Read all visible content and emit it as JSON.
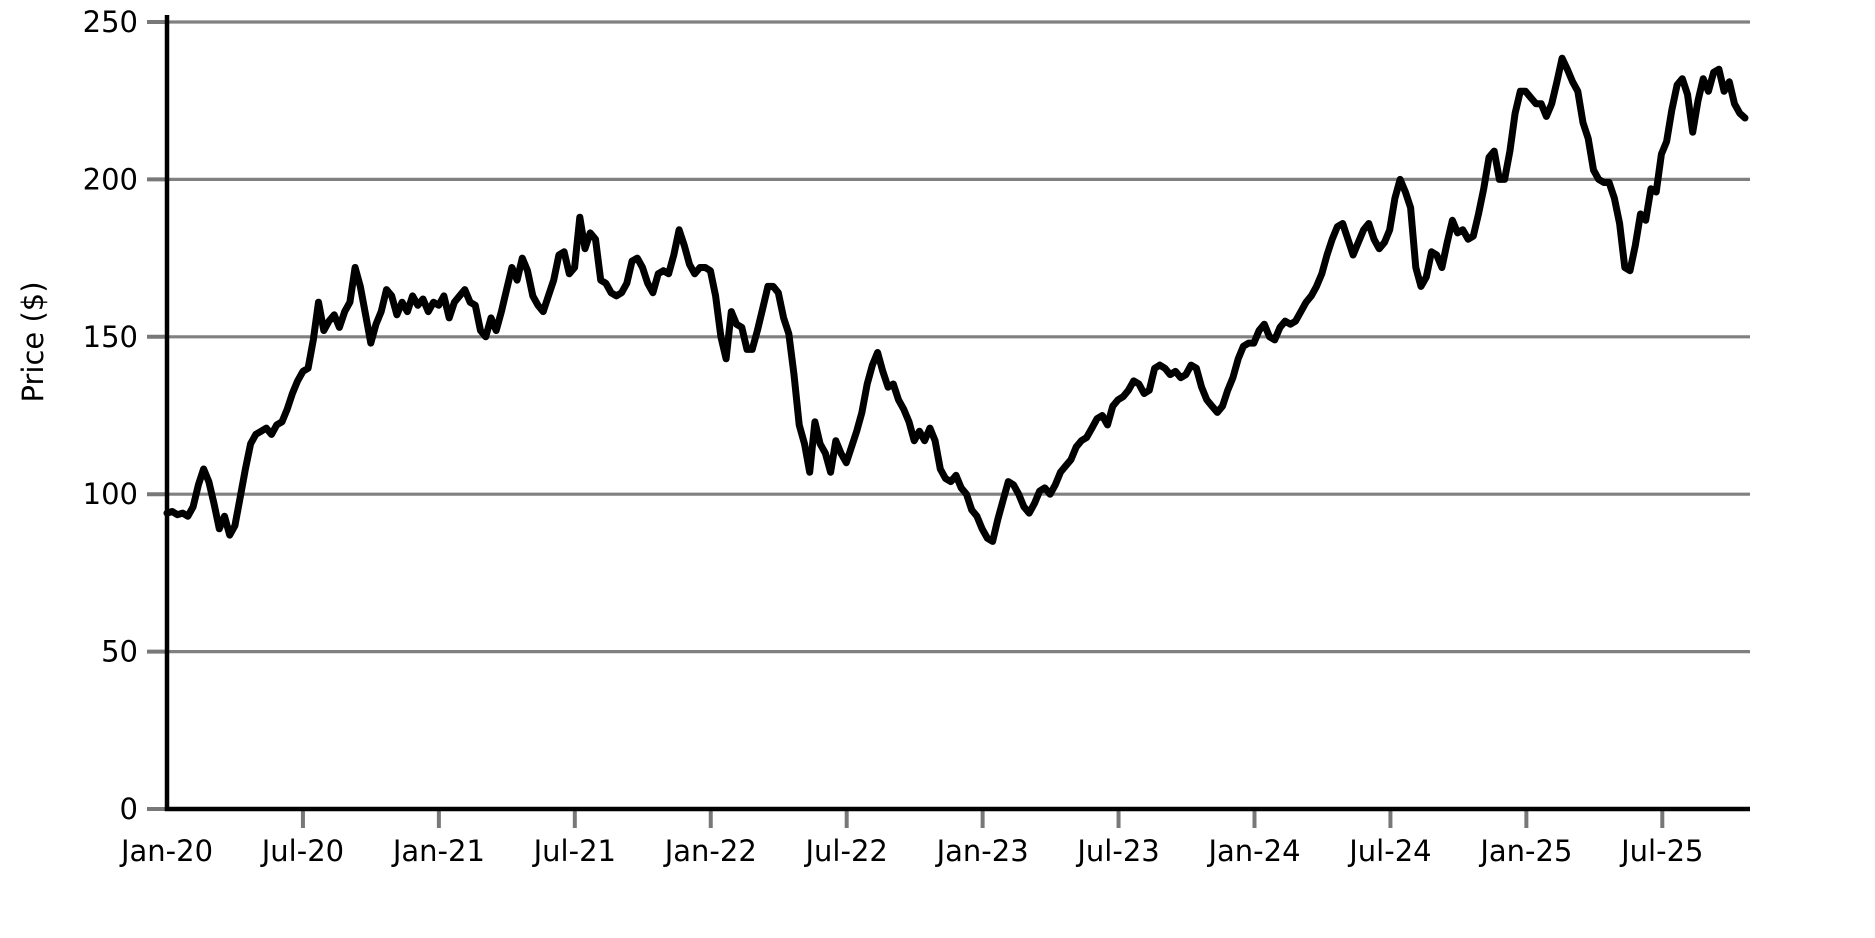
{
  "chart_data": {
    "type": "line",
    "title": "",
    "xlabel": "",
    "ylabel": "Price ($)",
    "ylim": [
      0,
      250
    ],
    "yticks": [
      0,
      50,
      100,
      150,
      200,
      250
    ],
    "grid": true,
    "legend": "none",
    "colors": {
      "line": "#000000",
      "gridline": "#808080",
      "tick": "#787878",
      "spine": "#000000",
      "text": "#000000",
      "background": "#ffffff"
    },
    "xticks": [
      {
        "label": "Jan-20",
        "month": 0
      },
      {
        "label": "Jul-20",
        "month": 6
      },
      {
        "label": "Jan-21",
        "month": 12
      },
      {
        "label": "Jul-21",
        "month": 18
      },
      {
        "label": "Jan-22",
        "month": 24
      },
      {
        "label": "Jul-22",
        "month": 30
      },
      {
        "label": "Jan-23",
        "month": 36
      },
      {
        "label": "Jul-23",
        "month": 42
      },
      {
        "label": "Jan-24",
        "month": 48
      },
      {
        "label": "Jul-24",
        "month": 54
      },
      {
        "label": "Jan-25",
        "month": 60
      },
      {
        "label": "Jul-25",
        "month": 66
      }
    ],
    "months_span": 69.65,
    "series": [
      {
        "name": "Price",
        "frequency": "weekly",
        "start": "Jan-2020",
        "end": "Oct-2025",
        "values": [
          94,
          94.5,
          93.5,
          94,
          93,
          96,
          103,
          108,
          104,
          97,
          89,
          93,
          87,
          90,
          99,
          108,
          116,
          119,
          120,
          121,
          119,
          122,
          123,
          127,
          132,
          136,
          139,
          140,
          149,
          161,
          152,
          155,
          157,
          153,
          158,
          161,
          172,
          166,
          157,
          148,
          154,
          158,
          165,
          163,
          157,
          161,
          158,
          163,
          160,
          162,
          158,
          161,
          160,
          163,
          156,
          161,
          163,
          165,
          161,
          160,
          152,
          150,
          156,
          152,
          158,
          165,
          172,
          168,
          175,
          171,
          163,
          160,
          158,
          163,
          168,
          176,
          177,
          170,
          172,
          188,
          178,
          183,
          181,
          168,
          167,
          164,
          163,
          164,
          167,
          174,
          175,
          172,
          167,
          164,
          170,
          171,
          170,
          176,
          184,
          179,
          173,
          170,
          172,
          172,
          171,
          163,
          150,
          143,
          158,
          154,
          153,
          146,
          146,
          152,
          159,
          166,
          166,
          164,
          156,
          151,
          138,
          122,
          116,
          107,
          123,
          116,
          113,
          107,
          117,
          113,
          110,
          115,
          120,
          126,
          135,
          141,
          145,
          139,
          134,
          135,
          130,
          127,
          123,
          117,
          120,
          117,
          121,
          117,
          108,
          105,
          104,
          106,
          102,
          100,
          95,
          93,
          89,
          86,
          85,
          92,
          98,
          104,
          103,
          100,
          96,
          94,
          97,
          101,
          102,
          100,
          103,
          107,
          109,
          111,
          115,
          117,
          118,
          121,
          124,
          125,
          122,
          128,
          130,
          131,
          133,
          136,
          135,
          132,
          133,
          140,
          141,
          140,
          138,
          139,
          137,
          138,
          141,
          140,
          134,
          130,
          128,
          126,
          128,
          133,
          137,
          143,
          147,
          148,
          148,
          152,
          154,
          150,
          149,
          153,
          155,
          154,
          155,
          158,
          161,
          163,
          166,
          170,
          176,
          181,
          185,
          186,
          181,
          176,
          180,
          184,
          186,
          181,
          178,
          180,
          184,
          194,
          200,
          196,
          191,
          172,
          166,
          169,
          177,
          176,
          172,
          180,
          187,
          183,
          184,
          181,
          182,
          189,
          197,
          207,
          209,
          200,
          200,
          209,
          221,
          228,
          228,
          226,
          224,
          224,
          220,
          224,
          231,
          238.5,
          235,
          231,
          228,
          218,
          213,
          203,
          200,
          199,
          199,
          194,
          186,
          172,
          171,
          179,
          189,
          187,
          197,
          196,
          208,
          212,
          222,
          230,
          232,
          227,
          215,
          225,
          232,
          228,
          234,
          235,
          228,
          231,
          224,
          221,
          219.5
        ]
      }
    ]
  }
}
